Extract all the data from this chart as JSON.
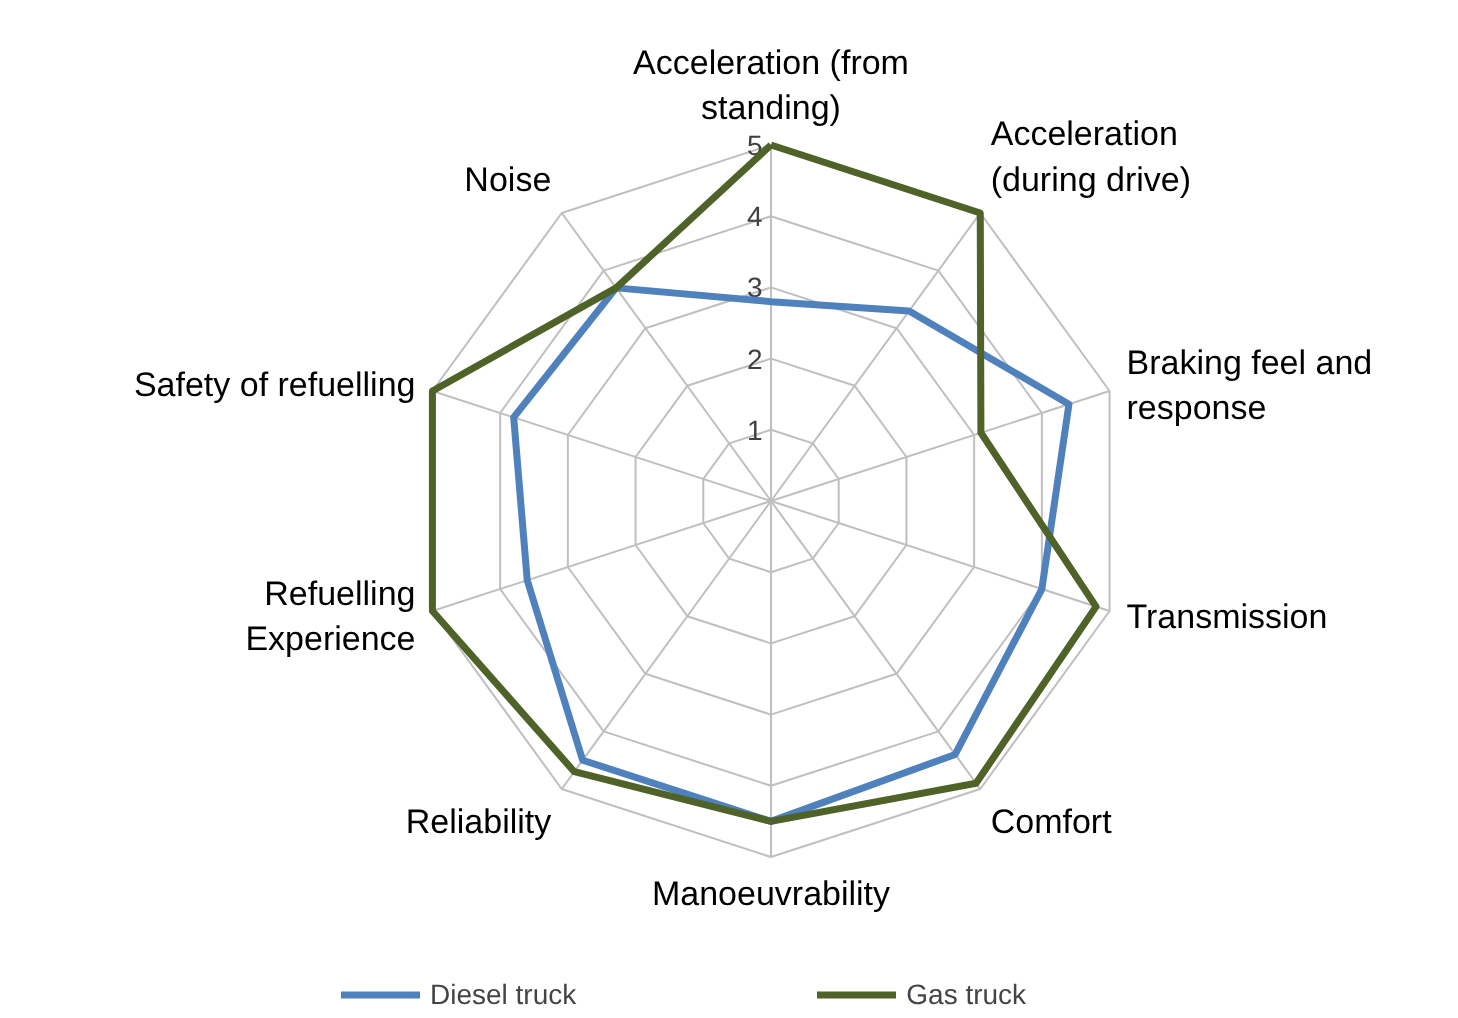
{
  "chart_data": {
    "type": "radar",
    "categories": [
      "Acceleration (from\nstanding)",
      "Acceleration\n(during drive)",
      "Braking feel and\nresponse",
      "Transmission",
      "Comfort",
      "Manoeuvrability",
      "Reliability",
      "Refuelling\nExperience",
      "Safety of refuelling",
      "Noise"
    ],
    "series": [
      {
        "name": "Diesel truck",
        "color": "#4f81bd",
        "values": [
          2.8,
          3.3,
          4.4,
          4.0,
          4.4,
          4.5,
          4.5,
          3.6,
          3.8,
          3.7
        ]
      },
      {
        "name": "Gas truck",
        "color": "#4f6228",
        "values": [
          5.0,
          5.0,
          3.1,
          4.8,
          4.9,
          4.5,
          4.7,
          5.0,
          5.0,
          3.7
        ]
      }
    ],
    "ylim": [
      0,
      5
    ],
    "yticks": [
      1,
      2,
      3,
      4,
      5
    ],
    "grid": true,
    "legend": "bottom"
  }
}
